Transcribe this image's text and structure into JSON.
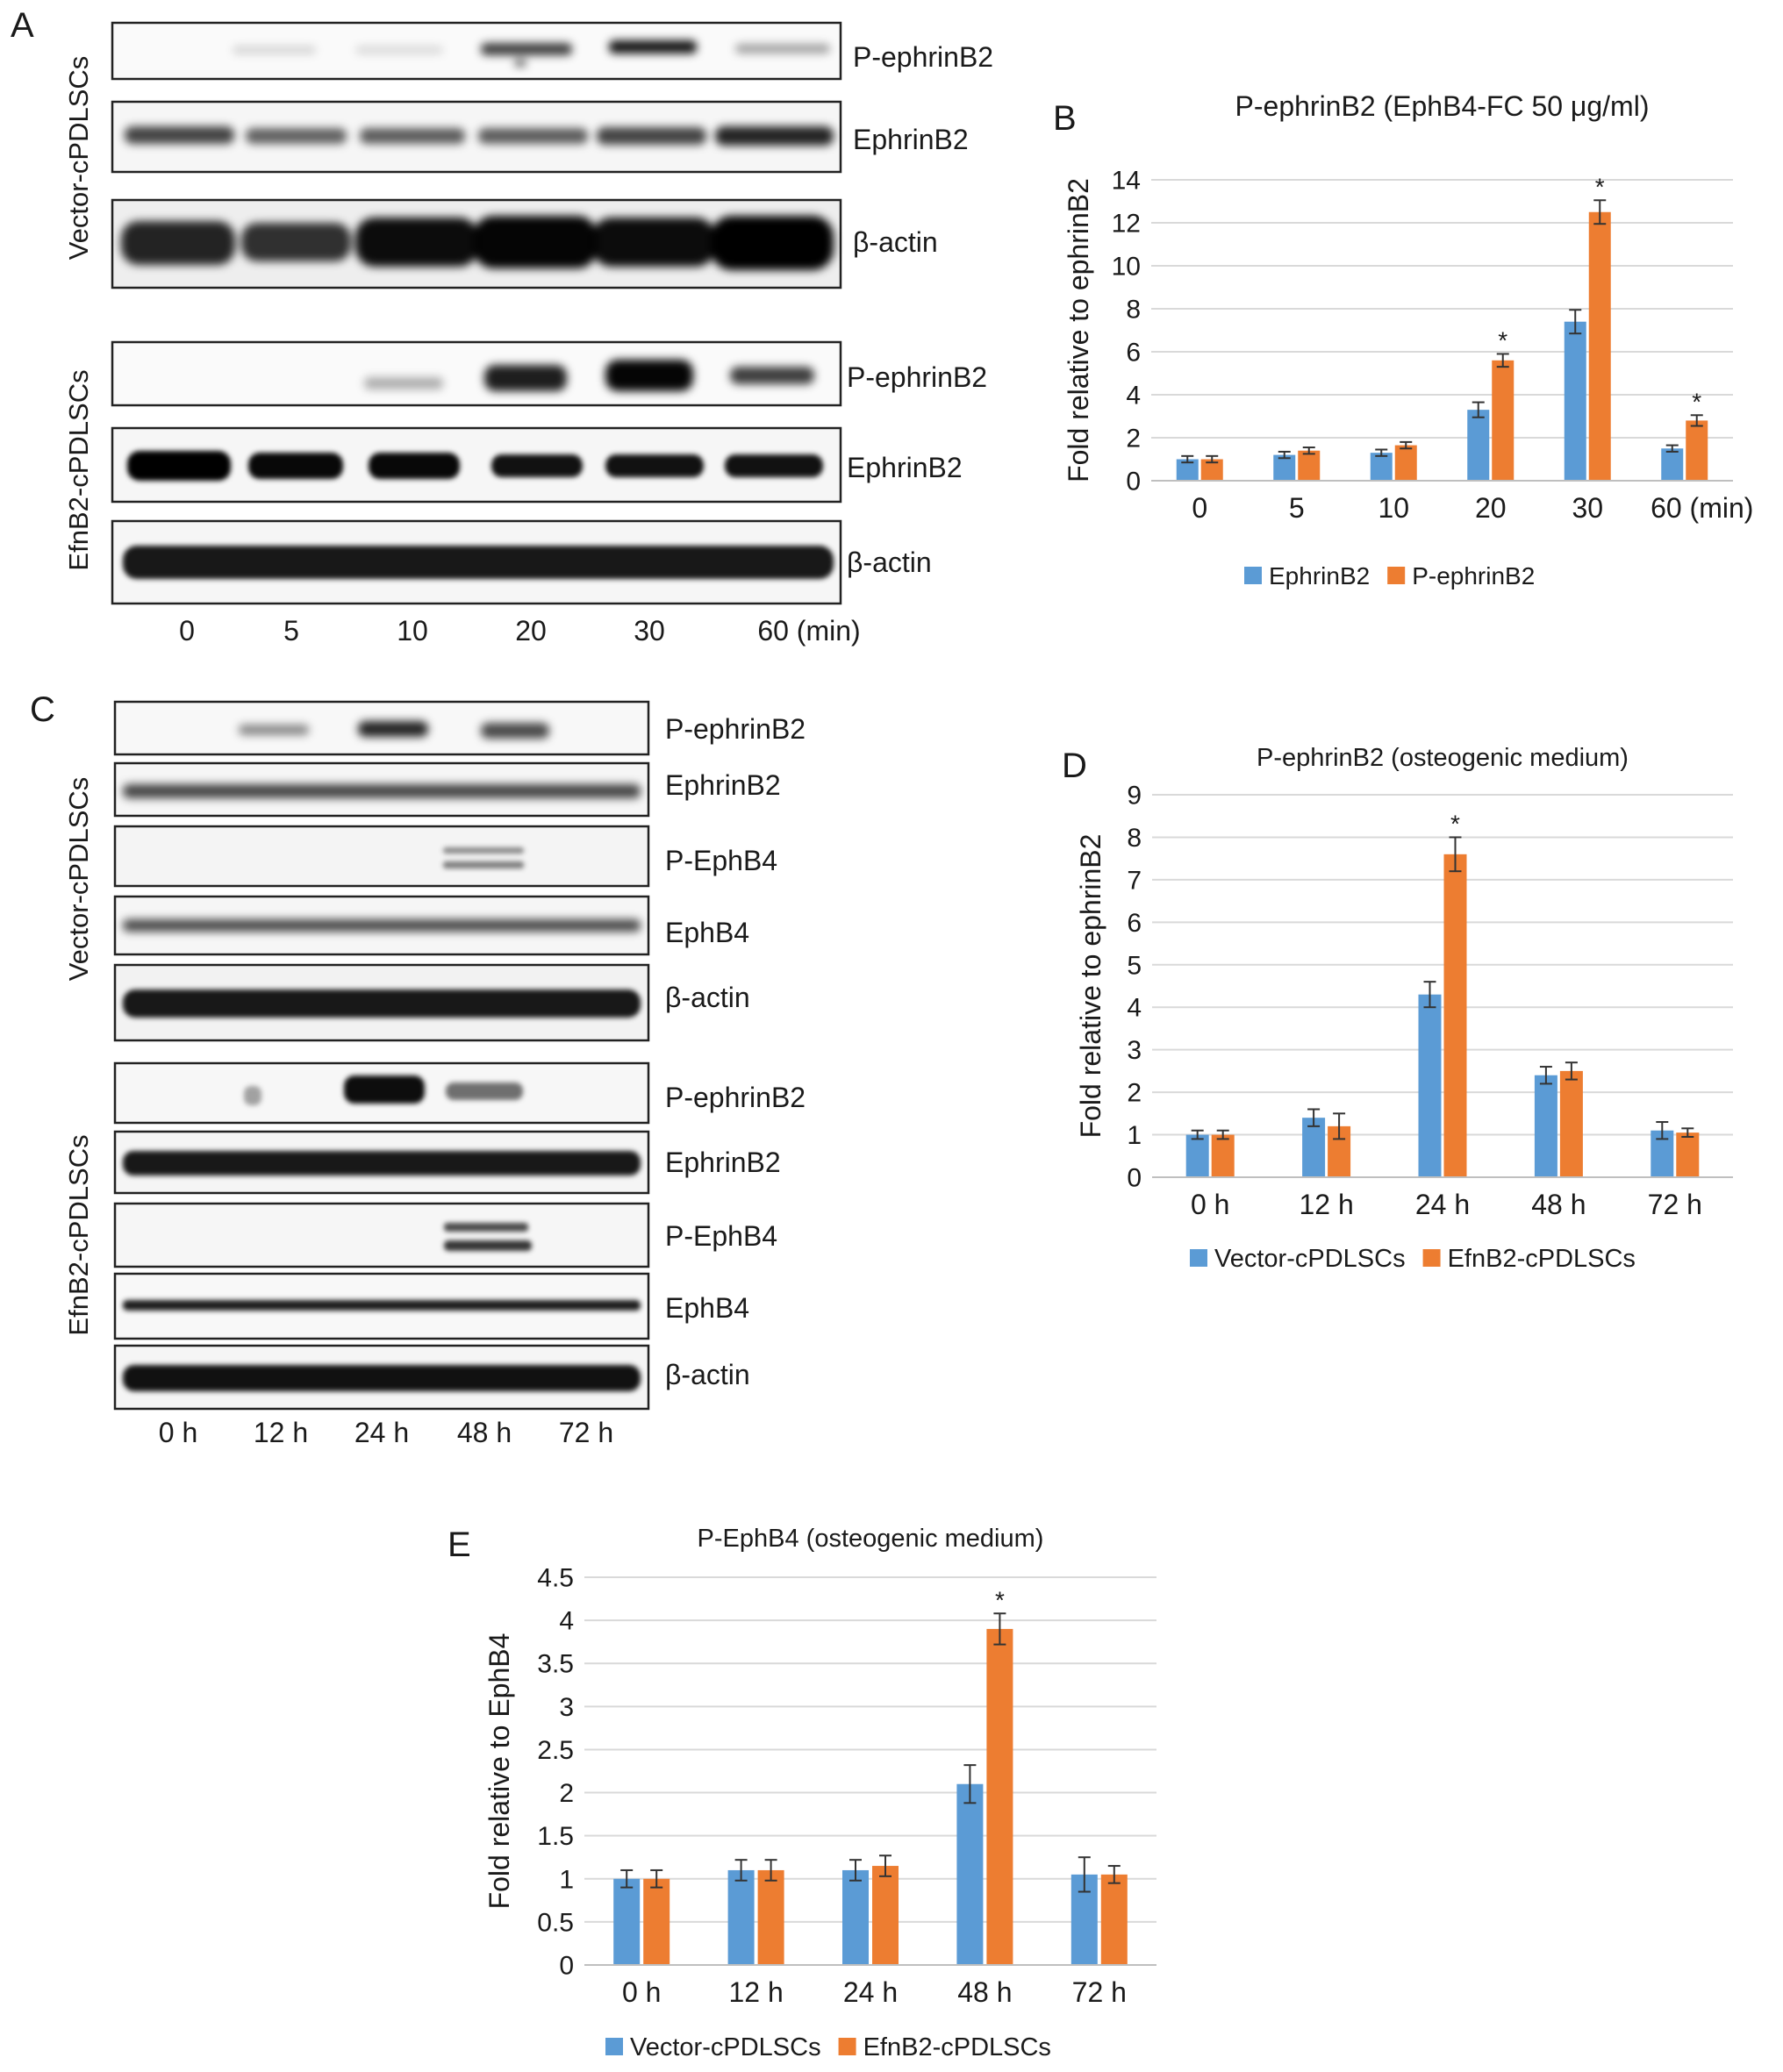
{
  "panel_letters": {
    "A": "A",
    "B": "B",
    "C": "C",
    "D": "D",
    "E": "E"
  },
  "blot_A": {
    "groups": [
      {
        "label": "Vector-cPDLSCs",
        "rows": [
          "P-ephrinB2",
          "EphrinB2",
          "β-actin"
        ]
      },
      {
        "label": "EfnB2-cPDLSCs",
        "rows": [
          "P-ephrinB2",
          "EphrinB2",
          "β-actin"
        ]
      }
    ],
    "lanes": [
      "0",
      "5",
      "10",
      "20",
      "30",
      "60 (min)"
    ]
  },
  "blot_C": {
    "groups": [
      {
        "label": "Vector-cPDLSCs",
        "rows": [
          "P-ephrinB2",
          "EphrinB2",
          "P-EphB4",
          "EphB4",
          "β-actin"
        ]
      },
      {
        "label": "EfnB2-cPDLSCs",
        "rows": [
          "P-ephrinB2",
          "EphrinB2",
          "P-EphB4",
          "EphB4",
          "β-actin"
        ]
      }
    ],
    "lanes": [
      "0 h",
      "12 h",
      "24 h",
      "48 h",
      "72 h"
    ]
  },
  "colors": {
    "blue": "#5b9bd5",
    "orange": "#ed7d31"
  },
  "chart_data": [
    {
      "id": "B",
      "type": "bar",
      "title": "P-ephrinB2 (EphB4-FC 50 μg/ml)",
      "ylabel": "Fold relative to ephrinB2",
      "categories": [
        "0",
        "5",
        "10",
        "20",
        "30",
        "60 (min)"
      ],
      "ylim": [
        0,
        14
      ],
      "yticks": [
        "0",
        "2",
        "4",
        "6",
        "8",
        "10",
        "12",
        "14"
      ],
      "grid": true,
      "legend": "bottom",
      "series": [
        {
          "name": "EphrinB2",
          "values": [
            1.0,
            1.2,
            1.3,
            3.3,
            7.4,
            1.5
          ],
          "errors": [
            0.15,
            0.15,
            0.15,
            0.35,
            0.55,
            0.15
          ]
        },
        {
          "name": "P-ephrinB2",
          "values": [
            1.0,
            1.4,
            1.65,
            5.6,
            12.5,
            2.8
          ],
          "errors": [
            0.15,
            0.15,
            0.15,
            0.3,
            0.55,
            0.25
          ]
        }
      ],
      "significance": [
        {
          "category": "20",
          "label": "*"
        },
        {
          "category": "30",
          "label": "*"
        },
        {
          "category": "60 (min)",
          "label": "*"
        }
      ]
    },
    {
      "id": "D",
      "type": "bar",
      "title": "P-ephrinB2 (osteogenic medium)",
      "ylabel": "Fold relative to ephrinB2",
      "categories": [
        "0 h",
        "12 h",
        "24 h",
        "48 h",
        "72 h"
      ],
      "ylim": [
        0,
        9
      ],
      "yticks": [
        "0",
        "1",
        "2",
        "3",
        "4",
        "5",
        "6",
        "7",
        "8",
        "9"
      ],
      "grid": true,
      "legend": "bottom",
      "series": [
        {
          "name": "Vector-cPDLSCs",
          "values": [
            1.0,
            1.4,
            4.3,
            2.4,
            1.1
          ],
          "errors": [
            0.1,
            0.2,
            0.3,
            0.2,
            0.2
          ]
        },
        {
          "name": "EfnB2-cPDLSCs",
          "values": [
            1.0,
            1.2,
            7.6,
            2.5,
            1.05
          ],
          "errors": [
            0.1,
            0.3,
            0.4,
            0.2,
            0.1
          ]
        }
      ],
      "significance": [
        {
          "category": "24 h",
          "label": "*"
        }
      ]
    },
    {
      "id": "E",
      "type": "bar",
      "title": "P-EphB4 (osteogenic medium)",
      "ylabel": "Fold relative to EphB4",
      "categories": [
        "0 h",
        "12 h",
        "24 h",
        "48 h",
        "72 h"
      ],
      "ylim": [
        0,
        4.5
      ],
      "yticks": [
        "0",
        "0.5",
        "1",
        "1.5",
        "2",
        "2.5",
        "3",
        "3.5",
        "4",
        "4.5"
      ],
      "grid": true,
      "legend": "bottom",
      "series": [
        {
          "name": "Vector-cPDLSCs",
          "values": [
            1.0,
            1.1,
            1.1,
            2.1,
            1.05
          ],
          "errors": [
            0.1,
            0.12,
            0.12,
            0.22,
            0.2
          ]
        },
        {
          "name": "EfnB2-cPDLSCs",
          "values": [
            1.0,
            1.1,
            1.15,
            3.9,
            1.05
          ],
          "errors": [
            0.1,
            0.12,
            0.12,
            0.18,
            0.1
          ]
        }
      ],
      "significance": [
        {
          "category": "48 h",
          "label": "*"
        }
      ]
    }
  ]
}
